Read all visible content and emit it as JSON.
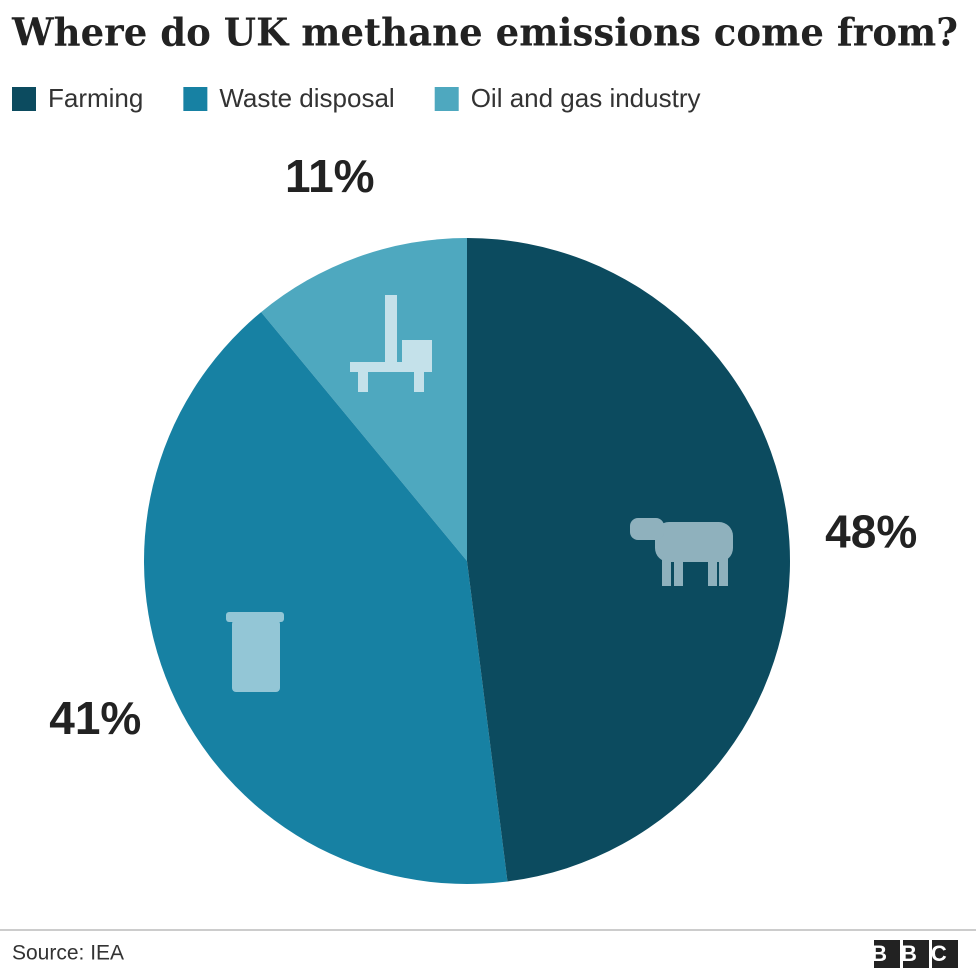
{
  "chart_data": {
    "type": "pie",
    "title": "Where do UK methane emissions come from?",
    "categories": [
      "Farming",
      "Waste disposal",
      "Oil and gas industry"
    ],
    "values": [
      48,
      41,
      11
    ],
    "value_labels": [
      "48%",
      "41%",
      "11%"
    ],
    "colors": [
      "#0c4b5f",
      "#1781a3",
      "#4ea8bf"
    ],
    "legend": "top",
    "source": "Source: IEA",
    "brand": "BBC"
  }
}
